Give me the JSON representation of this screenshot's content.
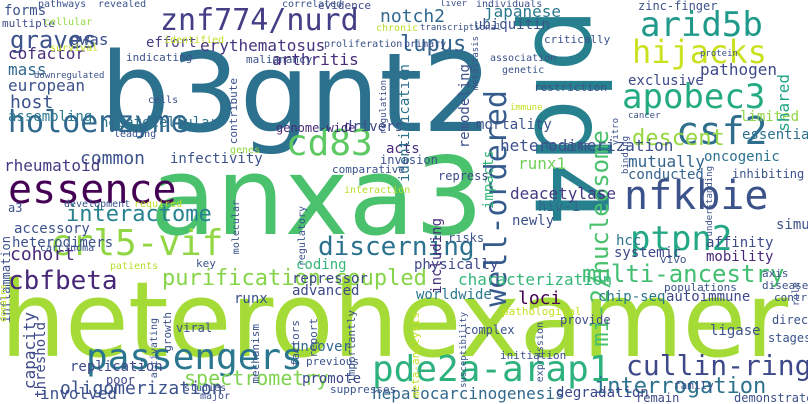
{
  "words": [
    {
      "text": "heterohexamer",
      "color": "#a5db36"
    },
    {
      "text": "anxa3",
      "color": "#4ac16d"
    },
    {
      "text": "b3gnt2",
      "color": "#2c728e"
    },
    {
      "text": "pld4",
      "color": "#27808e"
    },
    {
      "text": "znf774/nurd",
      "color": "#433e85"
    },
    {
      "text": "arid5b",
      "color": "#1f9a8a"
    },
    {
      "text": "hijacks",
      "color": "#cae11f"
    },
    {
      "text": "apobec3",
      "color": "#25ab82"
    },
    {
      "text": "well-ordered",
      "color": "#365c8d"
    },
    {
      "text": "mi-2/nucleosome",
      "color": "#4ac16d"
    },
    {
      "text": "holoenzyme",
      "color": "#31688e"
    },
    {
      "text": "cd83",
      "color": "#5ec962"
    },
    {
      "text": "csf2",
      "color": "#2e6f8e"
    },
    {
      "text": "essence",
      "color": "#440154"
    },
    {
      "text": "nfkbie",
      "color": "#3b528b"
    },
    {
      "text": "crl5-vif",
      "color": "#90d743"
    },
    {
      "text": "ptpn2",
      "color": "#22a884"
    },
    {
      "text": "discerning",
      "color": "#2c728e"
    },
    {
      "text": "passengers",
      "color": "#2a768e"
    },
    {
      "text": "pde2a-arap1",
      "color": "#2db27d"
    },
    {
      "text": "cullin-ring",
      "color": "#3e4989"
    },
    {
      "text": "multi-ancestry",
      "color": "#42be71"
    },
    {
      "text": "interrogation",
      "color": "#2c728e"
    },
    {
      "text": "purification-coupled",
      "color": "#86d549"
    },
    {
      "text": "cbfbeta",
      "color": "#482878"
    },
    {
      "text": "interactome",
      "color": "#26828e"
    },
    {
      "text": "spectrometry",
      "color": "#7fd34e"
    },
    {
      "text": "oligomerization",
      "color": "#3b528b"
    },
    {
      "text": "hepatocarcinogenesis",
      "color": "#31688e"
    },
    {
      "text": "graves",
      "color": "#3b528b"
    },
    {
      "text": "effort",
      "color": "#433e85"
    },
    {
      "text": "erythematosus",
      "color": "#46337e"
    },
    {
      "text": "arthritis",
      "color": "#472d7b"
    },
    {
      "text": "lupus",
      "color": "#33638d"
    },
    {
      "text": "notch2",
      "color": "#31688e"
    },
    {
      "text": "japanese",
      "color": "#2a788e"
    },
    {
      "text": "ubiquitin",
      "color": "#3b528b"
    },
    {
      "text": "pathogen",
      "color": "#3e4989"
    },
    {
      "text": "exclusive",
      "color": "#3e4989"
    },
    {
      "text": "limited",
      "color": "#8fd744"
    },
    {
      "text": "essential",
      "color": "#472d7b"
    },
    {
      "text": "mutually",
      "color": "#33638d"
    },
    {
      "text": "descent",
      "color": "#95d840"
    },
    {
      "text": "conducted",
      "color": "#33638d"
    },
    {
      "text": "oncogenic",
      "color": "#2c728e"
    },
    {
      "text": "shared",
      "color": "#2e6f8e"
    },
    {
      "text": "heterodimerization",
      "color": "#20a386"
    },
    {
      "text": "runx1",
      "color": "#3b528b"
    },
    {
      "text": "impacts",
      "color": "#6ece58"
    },
    {
      "text": "deacetylase",
      "color": "#35b779"
    },
    {
      "text": "hiv-1",
      "color": "#443a83"
    },
    {
      "text": "newly",
      "color": "#31688e"
    },
    {
      "text": "hcc",
      "color": "#3b528b"
    },
    {
      "text": "systemic",
      "color": "#2c728e"
    },
    {
      "text": "affinity",
      "color": "#3e4989"
    },
    {
      "text": "mobility",
      "color": "#3e4989"
    },
    {
      "text": "simultaneously",
      "color": "#482878"
    },
    {
      "text": "loci",
      "color": "#3b528b"
    },
    {
      "text": "chip-seq",
      "color": "#440154"
    },
    {
      "text": "autoimmune",
      "color": "#2a788e"
    },
    {
      "text": "characterization",
      "color": "#3e4989"
    },
    {
      "text": "runx",
      "color": "#35b779"
    },
    {
      "text": "worldwide",
      "color": "#3b528b"
    },
    {
      "text": "physically",
      "color": "#2a788e"
    },
    {
      "text": "repressor",
      "color": "#3e4989"
    },
    {
      "text": "advanced",
      "color": "#3e4989"
    },
    {
      "text": "coding",
      "color": "#3e4989"
    },
    {
      "text": "including",
      "color": "#35b779"
    },
    {
      "text": "risks",
      "color": "#472d7b"
    },
    {
      "text": "acts",
      "color": "#3b528b"
    },
    {
      "text": "drivers",
      "color": "#472d7b"
    },
    {
      "text": "genome-wide",
      "color": "#3e4989"
    },
    {
      "text": "identification",
      "color": "#482878"
    },
    {
      "text": "remodeling",
      "color": "#2c728e"
    },
    {
      "text": "mortality",
      "color": "#3b528b"
    },
    {
      "text": "common",
      "color": "#3b528b"
    },
    {
      "text": "rheumatoid",
      "color": "#3b528b"
    },
    {
      "text": "infectivity",
      "color": "#443a83"
    },
    {
      "text": "hepatocellular",
      "color": "#3b528b"
    },
    {
      "text": "host",
      "color": "#2c728e"
    },
    {
      "text": "european",
      "color": "#3b528b"
    },
    {
      "text": "assembling",
      "color": "#3b528b"
    },
    {
      "text": "mass",
      "color": "#2a788e"
    },
    {
      "text": "cofactor",
      "color": "#31688e"
    },
    {
      "text": "gwas",
      "color": "#472d7b"
    },
    {
      "text": "accessory",
      "color": "#3b528b"
    },
    {
      "text": "heterodimers",
      "color": "#3b528b"
    },
    {
      "text": "cohort",
      "color": "#3b528b"
    },
    {
      "text": "a3",
      "color": "#482878"
    },
    {
      "text": "inflammation",
      "color": "#3b528b"
    },
    {
      "text": "capacity",
      "color": "#3b528b"
    },
    {
      "text": "threshold",
      "color": "#3e4989"
    },
    {
      "text": "replication",
      "color": "#3e4989"
    },
    {
      "text": "involved",
      "color": "#3e4989"
    },
    {
      "text": "poor",
      "color": "#3b528b"
    },
    {
      "text": "promote",
      "color": "#3e4989"
    },
    {
      "text": "uncover",
      "color": "#3e4989"
    },
    {
      "text": "viral",
      "color": "#31688e"
    },
    {
      "text": "degradation",
      "color": "#3b528b"
    },
    {
      "text": "ligase",
      "color": "#3e4989"
    },
    {
      "text": "complex",
      "color": "#3b528b"
    },
    {
      "text": "provide",
      "color": "#3b528b"
    },
    {
      "text": "direct",
      "color": "#3e4989"
    },
    {
      "text": "stages",
      "color": "#3b528b"
    },
    {
      "text": "remain",
      "color": "#3b528b"
    },
    {
      "text": "demonstrated",
      "color": "#3e4989"
    },
    {
      "text": "evidence",
      "color": "#3b528b"
    },
    {
      "text": "zinc-finger",
      "color": "#3e4989"
    },
    {
      "text": "restriction",
      "color": "#3b528b"
    },
    {
      "text": "critically",
      "color": "#3b528b"
    },
    {
      "text": "contribute",
      "color": "#3b528b"
    },
    {
      "text": "malignancy",
      "color": "#3b528b"
    },
    {
      "text": "indicating",
      "color": "#3b528b"
    },
    {
      "text": "multiple",
      "color": "#3b528b"
    },
    {
      "text": "forms",
      "color": "#3e4989"
    },
    {
      "text": "axis",
      "color": "#3b528b"
    },
    {
      "text": "disease",
      "color": "#3b528b"
    },
    {
      "text": "controls",
      "color": "#3b528b"
    },
    {
      "text": "vivo",
      "color": "#3b528b"
    },
    {
      "text": "populations",
      "color": "#3b528b"
    },
    {
      "text": "inhibiting",
      "color": "#3b528b"
    },
    {
      "text": "targets",
      "color": "#3b528b"
    },
    {
      "text": "invasion",
      "color": "#3b528b"
    },
    {
      "text": "repress",
      "color": "#3b528b"
    },
    {
      "text": "key",
      "color": "#3e4989"
    },
    {
      "text": "factors",
      "color": "#3b528b"
    },
    {
      "text": "report",
      "color": "#3b528b"
    },
    {
      "text": "mechanism",
      "color": "#3b528b"
    },
    {
      "text": "previous",
      "color": "#3b528b"
    },
    {
      "text": "suppresses",
      "color": "#3b528b"
    },
    {
      "text": "major",
      "color": "#3b528b"
    },
    {
      "text": "studies",
      "color": "#3b528b"
    },
    {
      "text": "family",
      "color": "#3b528b"
    },
    {
      "text": "initiation",
      "color": "#3b528b"
    },
    {
      "text": "association",
      "color": "#3b528b"
    },
    {
      "text": "genetic",
      "color": "#3b528b"
    },
    {
      "text": "pathways",
      "color": "#3b528b"
    },
    {
      "text": "revealed",
      "color": "#3b528b"
    },
    {
      "text": "individuals",
      "color": "#3b528b"
    },
    {
      "text": "chronic",
      "color": "#3b528b"
    },
    {
      "text": "primary",
      "color": "#b5de2b"
    },
    {
      "text": "proliferation",
      "color": "#3b528b"
    },
    {
      "text": "downregulated",
      "color": "#3b528b"
    },
    {
      "text": "identified",
      "color": "#3b528b"
    },
    {
      "text": "survival",
      "color": "#c2df23"
    },
    {
      "text": "cellular",
      "color": "#c8e020"
    },
    {
      "text": "correlated",
      "color": "#95d840"
    },
    {
      "text": "cells",
      "color": "#3b528b"
    },
    {
      "text": "leading",
      "color": "#3b528b"
    },
    {
      "text": "genes",
      "color": "#3b528b"
    },
    {
      "text": "comparative",
      "color": "#8fd744"
    },
    {
      "text": "interaction",
      "color": "#3b528b"
    },
    {
      "text": "development",
      "color": "#b5de2b"
    },
    {
      "text": "required",
      "color": "#3b528b"
    },
    {
      "text": "carcinoma",
      "color": "#bddf26"
    },
    {
      "text": "patients",
      "color": "#3b528b"
    },
    {
      "text": "molecular",
      "color": "#b5de2b"
    },
    {
      "text": "regulatory",
      "color": "#3b528b"
    },
    {
      "text": "activating",
      "color": "#3b528b"
    },
    {
      "text": "growth",
      "color": "#3b528b"
    },
    {
      "text": "importantly",
      "color": "#3b528b"
    },
    {
      "text": "meta-analysis",
      "color": "#3b528b"
    },
    {
      "text": "pathological",
      "color": "#c2df23"
    },
    {
      "text": "susceptibility",
      "color": "#c2df23"
    },
    {
      "text": "expression",
      "color": "#3b528b"
    },
    {
      "text": "immune",
      "color": "#3b528b"
    },
    {
      "text": "cancer",
      "color": "#c2df23"
    },
    {
      "text": "vitro",
      "color": "#3b528b"
    },
    {
      "text": "binding",
      "color": "#3b528b"
    },
    {
      "text": "protein",
      "color": "#3b528b"
    },
    {
      "text": "metastasis",
      "color": "#3b528b"
    },
    {
      "text": "understanding",
      "color": "#3b528b"
    },
    {
      "text": "domains",
      "color": "#3b528b"
    },
    {
      "text": "transcriptional",
      "color": "#c2df23"
    },
    {
      "text": "regulation",
      "color": "#3b528b"
    },
    {
      "text": "role",
      "color": "#3b528b"
    },
    {
      "text": "liver",
      "color": "#3b528b"
    },
    {
      "text": "cell",
      "color": "#3b528b"
    }
  ]
}
